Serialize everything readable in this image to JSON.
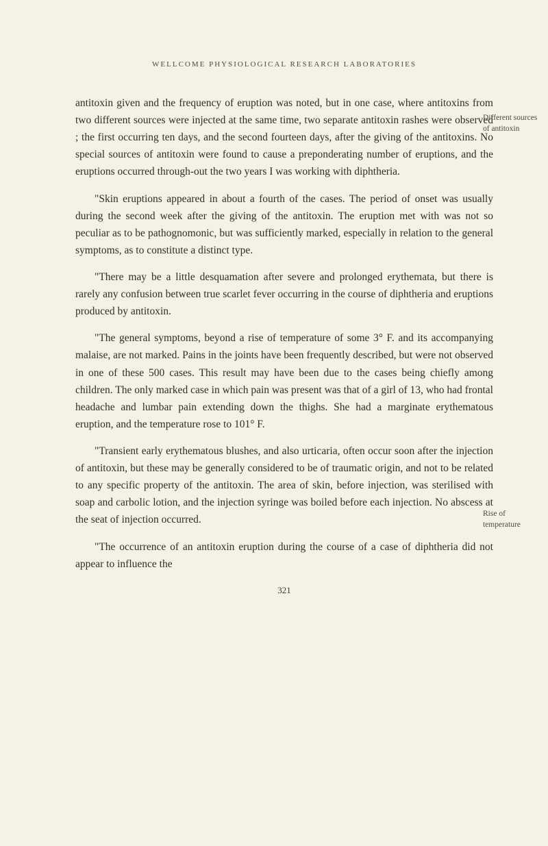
{
  "header": "WELLCOME PHYSIOLOGICAL RESEARCH LABORATORIES",
  "paragraphs": {
    "p1": "antitoxin given and the frequency of eruption was noted, but in one case, where antitoxins from two different sources were injected at the same time, two separate antitoxin rashes were observed ; the first occurring ten days, and the second fourteen days, after the giving of the antitoxins. No special sources of antitoxin were found to cause a preponderating number of eruptions, and the eruptions occurred through-out the two years I was working with diphtheria.",
    "p2": "\"Skin eruptions appeared in about a fourth of the cases. The period of onset was usually during the second week after the giving of the antitoxin. The eruption met with was not so peculiar as to be pathognomonic, but was sufficiently marked, especially in relation to the general symptoms, as to constitute a distinct type.",
    "p3": "\"There may be a little desquamation after severe and prolonged erythemata, but there is rarely any confusion between true scarlet fever occurring in the course of diphtheria and eruptions produced by antitoxin.",
    "p4": "\"The general symptoms, beyond a rise of temperature of some 3° F. and its accompanying malaise, are not marked. Pains in the joints have been frequently described, but were not observed in one of these 500 cases. This result may have been due to the cases being chiefly among children. The only marked case in which pain was present was that of a girl of 13, who had frontal headache and lumbar pain extending down the thighs. She had a marginate erythematous eruption, and the temperature rose to 101° F.",
    "p5": "\"Transient early erythematous blushes, and also urticaria, often occur soon after the injection of antitoxin, but these may be generally considered to be of traumatic origin, and not to be related to any specific property of the antitoxin. The area of skin, before injection, was sterilised with soap and carbolic lotion, and the injection syringe was boiled before each injection. No abscess at the seat of injection occurred.",
    "p6": "\"The occurrence of an antitoxin eruption during the course of a case of diphtheria did not appear to influence the"
  },
  "marginNotes": {
    "note1": "Different sources of antitoxin",
    "note2": "Rise of temperature"
  },
  "pageNumber": "321",
  "styling": {
    "backgroundColor": "#f5f1e6",
    "textColor": "#2e2e24",
    "headerColor": "#4a4a3e",
    "bodyFontSize": 15.5,
    "headerFontSize": 11,
    "marginNoteFontSize": 11.5,
    "pageNumberFontSize": 13,
    "lineHeight": 1.62,
    "pageWidth": 800,
    "pageHeight": 1235
  }
}
